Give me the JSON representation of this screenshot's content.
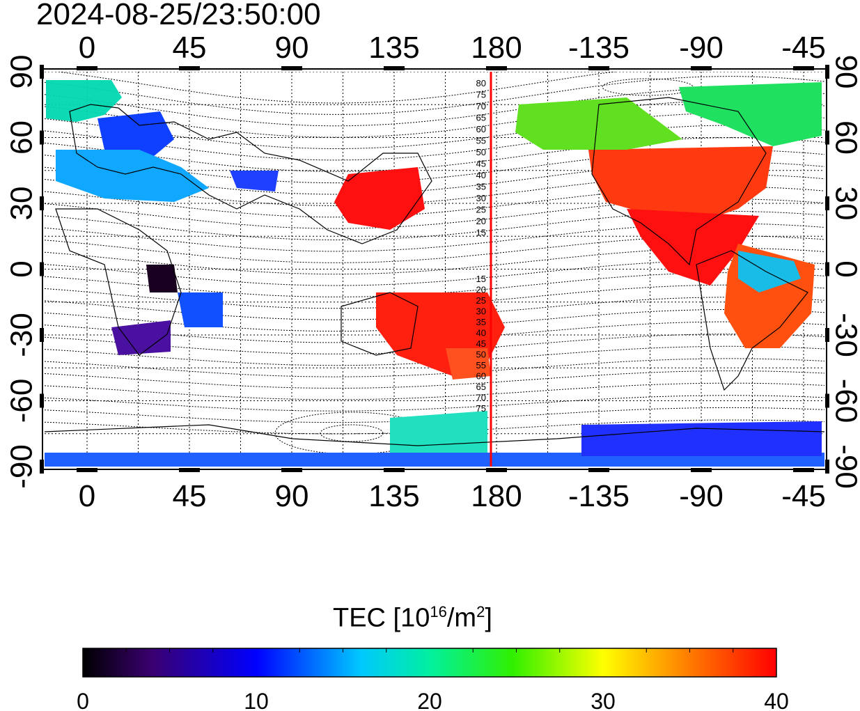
{
  "title": "2024-08-25/23:50:00",
  "lon_top_labels": [
    "0",
    "45",
    "90",
    "135",
    "180",
    "-135",
    "-90",
    "-45"
  ],
  "lon_bottom_labels": [
    "0",
    "45",
    "90",
    "135",
    "180",
    "-135",
    "-90",
    "-45"
  ],
  "lat_left_labels": [
    "90",
    "60",
    "30",
    "0",
    "-30",
    "-60",
    "-90"
  ],
  "lat_right_labels": [
    "90",
    "60",
    "30",
    "0",
    "-30",
    "-60",
    "-90"
  ],
  "meridian_labels": [
    "80",
    "75",
    "70",
    "65",
    "60",
    "55",
    "50",
    "45",
    "40",
    "35",
    "30",
    "25",
    "20",
    "15",
    "15",
    "20",
    "25",
    "30",
    "35",
    "40",
    "45",
    "50",
    "55",
    "60",
    "65",
    "70",
    "75"
  ],
  "colorbar": {
    "title_prefix": "TEC  [10",
    "title_exp1": "16",
    "title_mid": "/m",
    "title_exp2": "2",
    "title_suffix": "]",
    "tick_labels": [
      "0",
      "10",
      "20",
      "30",
      "40"
    ],
    "min": 0,
    "max": 40
  },
  "colors": {
    "terminator": "#ff0000",
    "low": "#000000",
    "high": "#ff0000"
  }
}
